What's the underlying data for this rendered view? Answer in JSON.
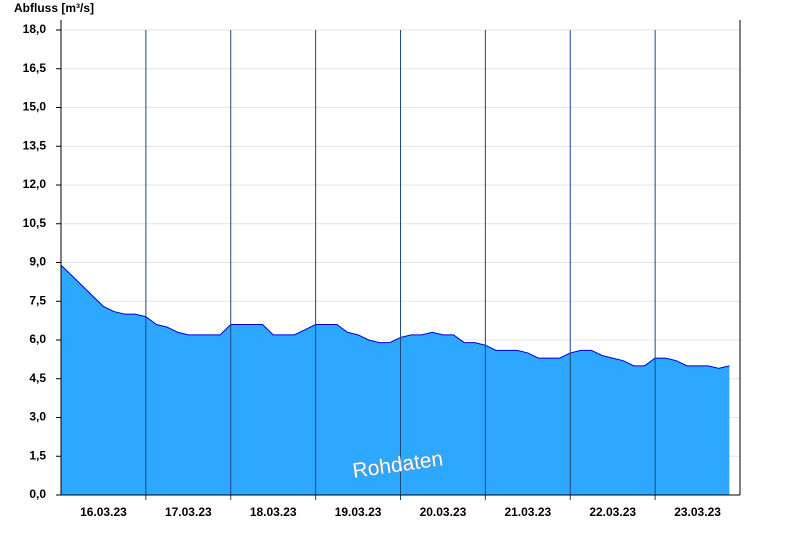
{
  "chart_data": {
    "type": "area",
    "title": "Abfluss [m³/s]",
    "annotation": "Rohdaten",
    "categories": [
      null,
      null,
      null,
      null,
      "16.03.23",
      null,
      null,
      null,
      null,
      null,
      null,
      null,
      "17.03.23",
      null,
      null,
      null,
      null,
      null,
      null,
      null,
      "18.03.23",
      null,
      null,
      null,
      null,
      null,
      null,
      null,
      "19.03.23",
      null,
      null,
      null,
      null,
      null,
      null,
      null,
      "20.03.23",
      null,
      null,
      null,
      null,
      null,
      null,
      null,
      "21.03.23",
      null,
      null,
      null,
      null,
      null,
      null,
      null,
      "22.03.23",
      null,
      null,
      null,
      null,
      null,
      null,
      null,
      "23.03.23",
      null,
      null,
      null
    ],
    "series": [
      {
        "color": "#2ea8ff",
        "line_color": "#0000cc",
        "values": [
          8.9,
          8.5,
          8.1,
          7.7,
          7.3,
          7.1,
          7.0,
          7.0,
          6.9,
          6.6,
          6.5,
          6.3,
          6.2,
          6.2,
          6.2,
          6.2,
          6.6,
          6.6,
          6.6,
          6.6,
          6.2,
          6.2,
          6.2,
          6.4,
          6.6,
          6.6,
          6.6,
          6.3,
          6.2,
          6.0,
          5.9,
          5.9,
          6.1,
          6.2,
          6.2,
          6.3,
          6.2,
          6.2,
          5.9,
          5.9,
          5.8,
          5.6,
          5.6,
          5.6,
          5.5,
          5.3,
          5.3,
          5.3,
          5.5,
          5.6,
          5.6,
          5.4,
          5.3,
          5.2,
          5.0,
          5.0,
          5.3,
          5.3,
          5.2,
          5.0,
          5.0,
          5.0,
          4.9,
          5.0
        ]
      }
    ],
    "ylim": [
      0,
      18
    ],
    "yticks": [
      {
        "value": 0,
        "label": "0,0"
      },
      {
        "value": 1.5,
        "label": "1,5"
      },
      {
        "value": 3,
        "label": "3,0"
      },
      {
        "value": 4.5,
        "label": "4,5"
      },
      {
        "value": 6,
        "label": "6,0"
      },
      {
        "value": 7.5,
        "label": "7,5"
      },
      {
        "value": 9,
        "label": "9,0"
      },
      {
        "value": 10.5,
        "label": "10,5"
      },
      {
        "value": 12,
        "label": "12,0"
      },
      {
        "value": 13.5,
        "label": "13,5"
      },
      {
        "value": 15,
        "label": "15,0"
      },
      {
        "value": 16.5,
        "label": "16,5"
      },
      {
        "value": 18,
        "label": "18,0"
      }
    ],
    "grid": true
  }
}
